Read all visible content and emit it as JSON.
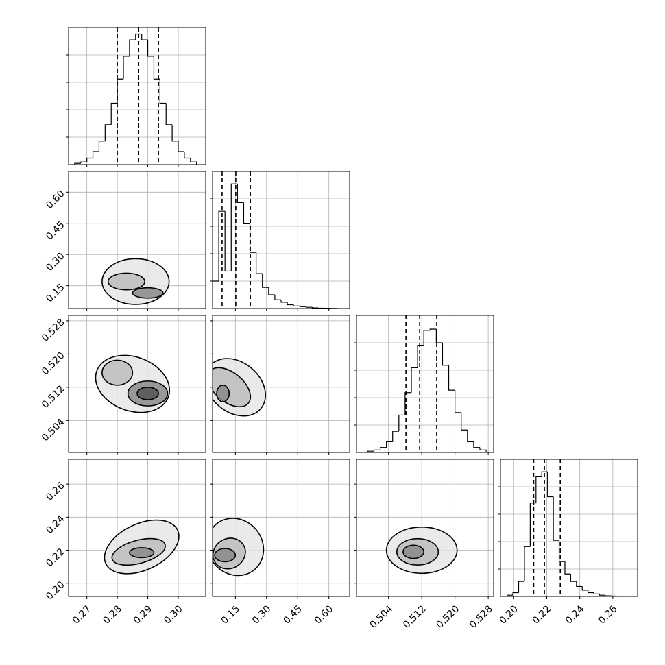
{
  "chart_data": {
    "type": "corner",
    "parameters": [
      {
        "range": [
          0.264,
          0.309
        ],
        "ticks": [
          0.27,
          0.28,
          0.29,
          {
            "value": 0.3,
            "label": "0.30"
          }
        ],
        "quantiles": [
          0.28,
          0.287,
          0.2935
        ],
        "hist": {
          "bins": [
            0.266,
            0.268,
            0.27,
            0.272,
            0.274,
            0.276,
            0.278,
            0.28,
            0.282,
            0.284,
            0.286,
            0.288,
            0.29,
            0.292,
            0.294,
            0.296,
            0.298,
            0.3,
            0.302,
            0.304,
            0.306
          ],
          "counts": [
            2,
            4,
            10,
            20,
            36,
            61,
            94,
            131,
            166,
            191,
            200,
            191,
            166,
            131,
            94,
            61,
            36,
            20,
            10,
            4
          ],
          "ylim": [
            0,
            210
          ]
        },
        "contours": []
      },
      {
        "range": [
          0.04,
          0.7
        ],
        "ticks": [
          0.15,
          {
            "value": 0.3,
            "label": "0.30"
          },
          0.45,
          {
            "value": 0.6,
            "label": "0.60"
          }
        ],
        "quantiles": [
          0.086,
          0.152,
          0.222
        ],
        "hist": {
          "bins": [
            0.04,
            0.07,
            0.1,
            0.13,
            0.16,
            0.19,
            0.22,
            0.25,
            0.28,
            0.31,
            0.34,
            0.37,
            0.4,
            0.43,
            0.46,
            0.49,
            0.52,
            0.55,
            0.58,
            0.61,
            0.64
          ],
          "counts": [
            22,
            78,
            30,
            100,
            85,
            68,
            45,
            28,
            17,
            11,
            7,
            5,
            3,
            2,
            1.5,
            1,
            0.5,
            0.3,
            0.2,
            0.1
          ],
          "ylim": [
            0,
            110
          ]
        },
        "contours": [
          [
            {
              "cx": 0.286,
              "cy": 0.17,
              "rx": 0.011,
              "ry": 0.11,
              "angle": 0
            },
            {
              "cx": 0.283,
              "cy": 0.17,
              "rx": 0.006,
              "ry": 0.04,
              "angle": 0
            },
            {
              "cx": 0.29,
              "cy": 0.115,
              "rx": 0.005,
              "ry": 0.025,
              "angle": 0
            }
          ]
        ]
      },
      {
        "range": [
          0.4963,
          0.5293
        ],
        "ticks": [
          0.504,
          0.512,
          {
            "value": 0.52,
            "label": "0.520"
          },
          0.528
        ],
        "quantiles": [
          0.5082,
          0.5115,
          0.5156
        ],
        "hist": {
          "bins": [
            0.4975,
            0.499,
            0.5005,
            0.502,
            0.5035,
            0.505,
            0.5065,
            0.508,
            0.5095,
            0.511,
            0.5125,
            0.514,
            0.5155,
            0.517,
            0.5185,
            0.52,
            0.5215,
            0.523,
            0.5245,
            0.526,
            0.5275
          ],
          "counts": [
            0,
            1,
            2,
            4,
            9,
            17,
            30,
            48,
            68,
            86,
            98,
            99,
            88,
            70,
            50,
            32,
            18,
            9,
            4,
            2
          ],
          "ylim": [
            0,
            110
          ]
        },
        "contours": [
          [
            {
              "cx": 0.285,
              "cy": 0.5128,
              "rx": 0.0125,
              "ry": 0.0065,
              "angle": 20
            },
            {
              "cx": 0.28,
              "cy": 0.5155,
              "rx": 0.005,
              "ry": 0.003,
              "angle": 0
            },
            {
              "cx": 0.29,
              "cy": 0.5105,
              "rx": 0.0065,
              "ry": 0.003,
              "angle": 0
            },
            {
              "cx": 0.29,
              "cy": 0.5105,
              "rx": 0.0035,
              "ry": 0.0015,
              "angle": 0
            }
          ],
          [
            {
              "cx": 0.15,
              "cy": 0.512,
              "rx": 0.12,
              "ry": 0.008,
              "angle": -50
            },
            {
              "cx": 0.12,
              "cy": 0.512,
              "rx": 0.07,
              "ry": 0.006,
              "angle": -50
            },
            {
              "cx": 0.09,
              "cy": 0.5105,
              "rx": 0.03,
              "ry": 0.002,
              "angle": 0
            }
          ]
        ]
      },
      {
        "range": [
          0.192,
          0.275
        ],
        "ticks": [
          {
            "value": 0.2,
            "label": "0.20"
          },
          0.22,
          0.24,
          0.26
        ],
        "quantiles": [
          0.2121,
          0.2186,
          0.2282
        ],
        "hist": {
          "bins": [
            0.196,
            0.1995,
            0.203,
            0.2065,
            0.21,
            0.2135,
            0.217,
            0.2205,
            0.224,
            0.2275,
            0.231,
            0.2345,
            0.238,
            0.2415,
            0.245,
            0.2485,
            0.252,
            0.2555,
            0.259,
            0.2625,
            0.266
          ],
          "counts": [
            1,
            3,
            12,
            40,
            75,
            96,
            100,
            80,
            45,
            28,
            18,
            12,
            8,
            5,
            3,
            2,
            1,
            0.5,
            0.3,
            0.1
          ],
          "ylim": [
            0,
            110
          ]
        },
        "contours": [
          [
            {
              "cx": 0.288,
              "cy": 0.222,
              "rx": 0.013,
              "ry": 0.014,
              "angle": -25
            },
            {
              "cx": 0.287,
              "cy": 0.219,
              "rx": 0.009,
              "ry": 0.007,
              "angle": -15
            },
            {
              "cx": 0.288,
              "cy": 0.2185,
              "rx": 0.004,
              "ry": 0.003,
              "angle": 0
            }
          ],
          [
            {
              "cx": 0.15,
              "cy": 0.222,
              "rx": 0.13,
              "ry": 0.018,
              "angle": -40
            },
            {
              "cx": 0.12,
              "cy": 0.218,
              "rx": 0.08,
              "ry": 0.009,
              "angle": -30
            },
            {
              "cx": 0.1,
              "cy": 0.217,
              "rx": 0.05,
              "ry": 0.004,
              "angle": 0
            }
          ],
          [
            {
              "cx": 0.512,
              "cy": 0.22,
              "rx": 0.0085,
              "ry": 0.014,
              "angle": 0
            },
            {
              "cx": 0.511,
              "cy": 0.219,
              "rx": 0.005,
              "ry": 0.008,
              "angle": 0
            },
            {
              "cx": 0.51,
              "cy": 0.219,
              "rx": 0.0025,
              "ry": 0.004,
              "angle": 0
            }
          ]
        ]
      }
    ]
  }
}
